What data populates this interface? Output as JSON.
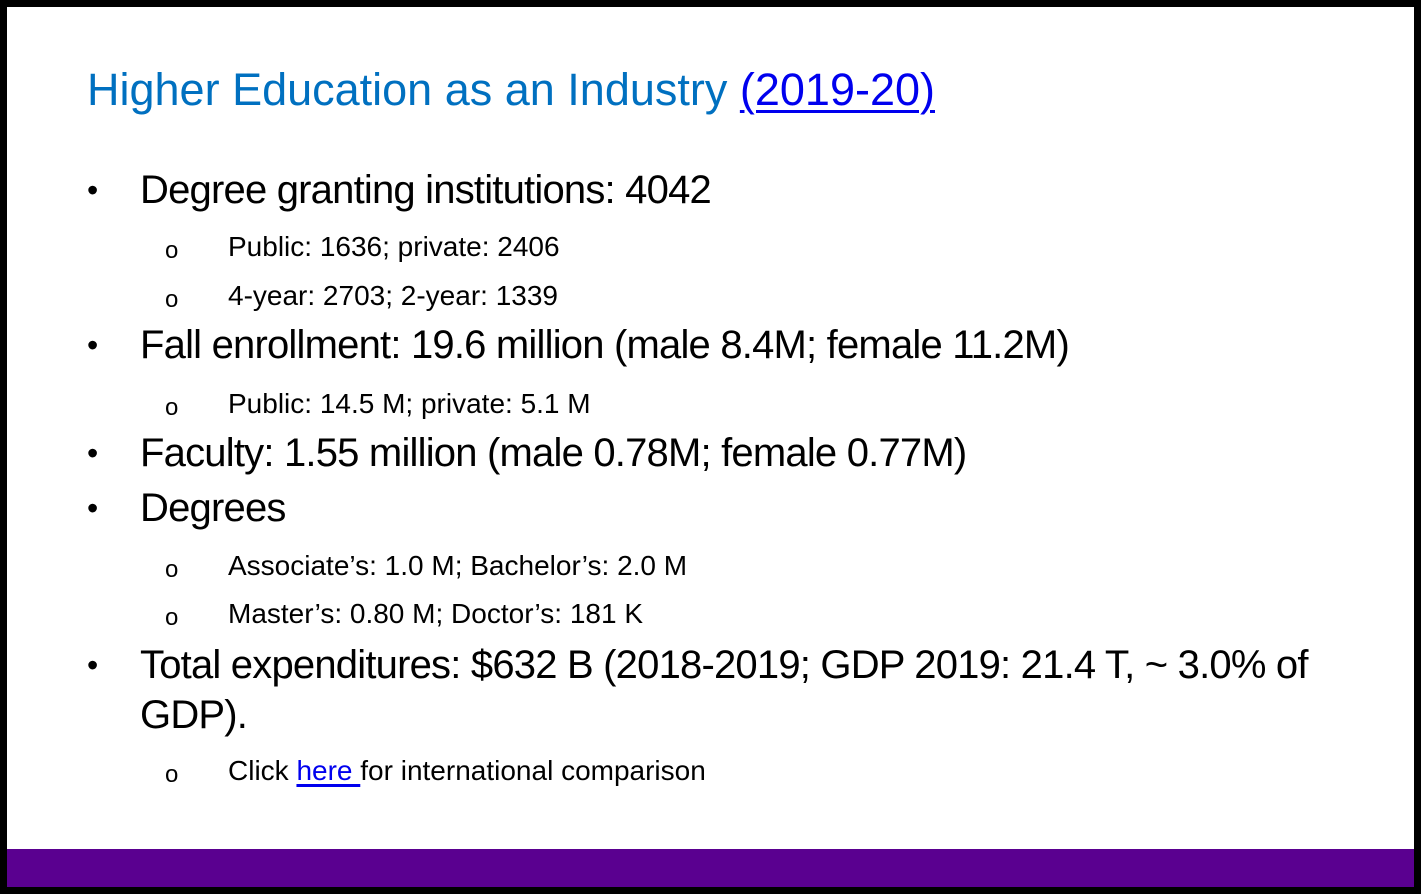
{
  "slide": {
    "title_text": "Higher Education as an Industry ",
    "title_link": "(2019-20) ",
    "bullet_char": "•",
    "sub_bullet_char": "o",
    "items": [
      {
        "text": "Degree granting institutions: 4042"
      },
      {
        "text": "Public: 1636; private: 2406"
      },
      {
        "text": "4-year: 2703; 2-year: 1339"
      },
      {
        "text": "Fall enrollment: 19.6 million (male 8.4M; female 11.2M)"
      },
      {
        "text": "Public: 14.5 M; private: 5.1 M"
      },
      {
        "text": "Faculty: 1.55 million (male 0.78M; female 0.77M)"
      },
      {
        "text": "Degrees"
      },
      {
        "text": "Associate’s: 1.0 M; Bachelor’s: 2.0 M"
      },
      {
        "text": "Master’s: 0.80 M; Doctor’s: 181 K"
      },
      {
        "text": "Total expenditures: $632 B (2018-2019; GDP 2019: 21.4 T, ~ 3.0% of GDP)."
      },
      {
        "prefix": "Click ",
        "link": "here ",
        "suffix": "for international comparison"
      }
    ],
    "colors": {
      "title": "#0070c0",
      "link": "#0000ee",
      "footer_bar": "#5a0090",
      "border": "#000000"
    }
  }
}
